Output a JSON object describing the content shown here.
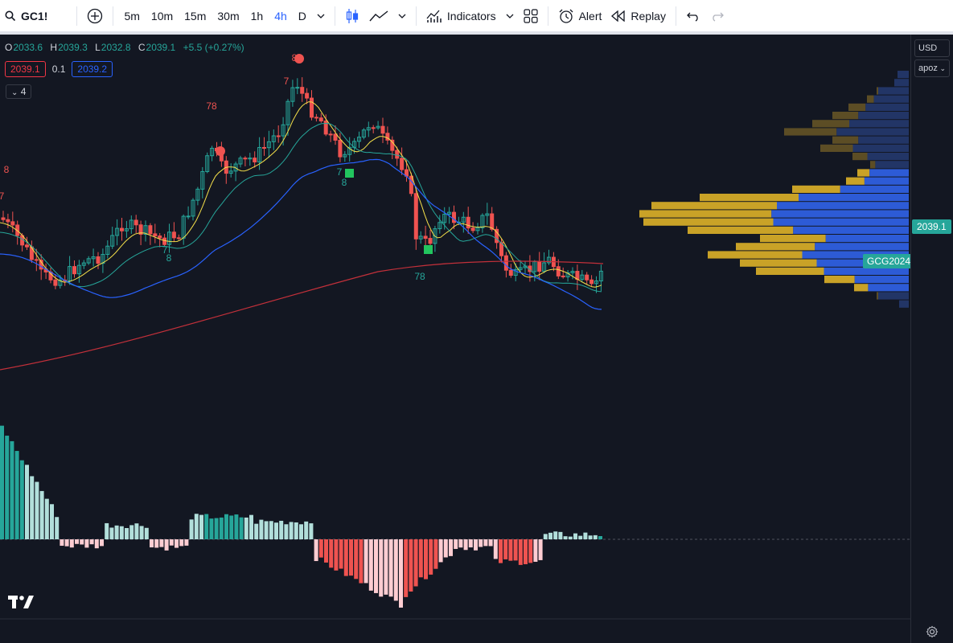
{
  "toolbar": {
    "symbol": "GC1!",
    "timeframes": [
      "5m",
      "10m",
      "15m",
      "30m",
      "1h",
      "4h",
      "D"
    ],
    "active_timeframe": "4h",
    "indicators_label": "Indicators",
    "alert_label": "Alert",
    "replay_label": "Replay"
  },
  "legend": {
    "o_label": "O",
    "o_value": "2033.6",
    "h_label": "H",
    "h_value": "2039.3",
    "l_label": "L",
    "l_value": "2032.8",
    "c_label": "C",
    "c_value": "2039.1",
    "change": "+5.5 (+0.27%)"
  },
  "trade": {
    "sell_price": "2039.1",
    "spread": "0.1",
    "buy_price": "2039.2"
  },
  "collapse_count": "4",
  "price_axis": {
    "currency": "USD",
    "scale_mode": "apoz",
    "last_price_label": "GCG2024",
    "last_price": "2039.1"
  },
  "markers": {
    "m1": "8",
    "m2": "7",
    "m3": "78",
    "m4": "8",
    "m5": "7",
    "m6": "7",
    "m7": "8",
    "m8": "7",
    "m9": "8",
    "m10": "78"
  },
  "colors": {
    "up": "#26a69a",
    "down": "#ef5350",
    "ema_fast": "#f5e04a",
    "ema_mid": "#26a69a",
    "ema_slow": "#2962ff",
    "ema_long": "#c2303a",
    "vp_gold": "#c9a227",
    "vp_blue": "#2d5bd6"
  }
}
